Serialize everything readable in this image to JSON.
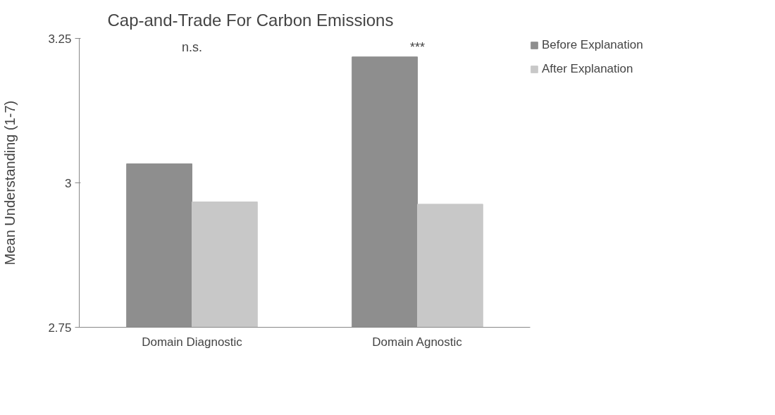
{
  "chart_data": {
    "type": "bar",
    "title": "Cap-and-Trade For Carbon Emissions",
    "ylabel": "Mean Understanding (1-7)",
    "categories": [
      "Domain Diagnostic",
      "Domain Agnostic"
    ],
    "series": [
      {
        "name": "Before Explanation",
        "color": "#8e8e8e",
        "values": [
          3.033,
          3.218
        ]
      },
      {
        "name": "After Explanation",
        "color": "#c8c8c8",
        "values": [
          2.967,
          2.963
        ]
      }
    ],
    "ylim": [
      2.75,
      3.25
    ],
    "yticks": [
      2.75,
      3,
      3.25
    ],
    "grid": false,
    "legend": "right",
    "annotations": [
      "n.s.",
      "***"
    ]
  }
}
